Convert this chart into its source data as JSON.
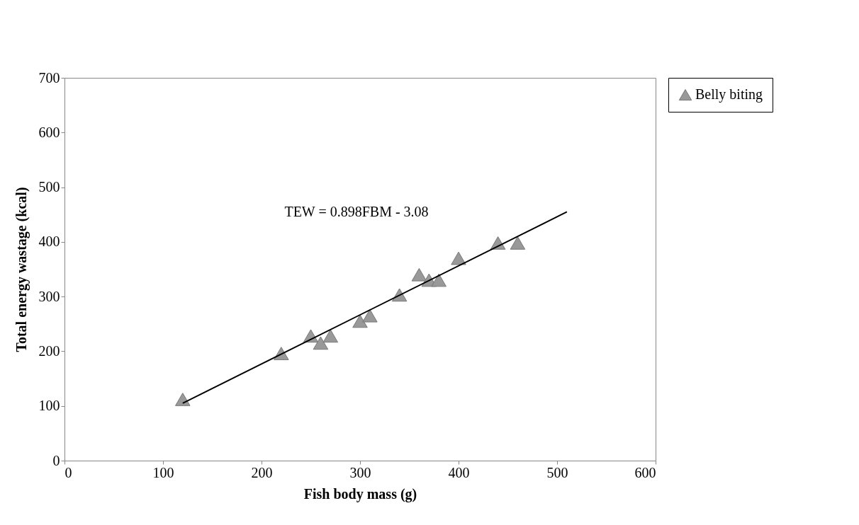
{
  "chart_data": {
    "type": "scatter",
    "xlabel": "Fish body mass (g)",
    "ylabel": "Total energy wastage (kcal)",
    "x": [
      120,
      220,
      250,
      260,
      270,
      300,
      310,
      340,
      360,
      370,
      380,
      400,
      440,
      460
    ],
    "series": [
      {
        "name": "Belly biting",
        "color": "#999999",
        "marker": "triangle",
        "values": [
          112,
          196,
          228,
          215,
          228,
          255,
          265,
          303,
          340,
          330,
          330,
          370,
          398,
          398
        ]
      },
      {
        "type": "line",
        "color": "#000000",
        "x": [
          120,
          510
        ],
        "values": [
          105,
          455
        ]
      }
    ],
    "xlim": [
      0,
      600
    ],
    "xticks": [
      0,
      100,
      200,
      300,
      400,
      500,
      600
    ],
    "ylim": [
      0,
      700
    ],
    "yticks": [
      0,
      100,
      200,
      300,
      400,
      500,
      600,
      700
    ],
    "grid": false,
    "legend": "right",
    "annotations": [
      "TEW = 0.898FBM - 3.08"
    ]
  }
}
